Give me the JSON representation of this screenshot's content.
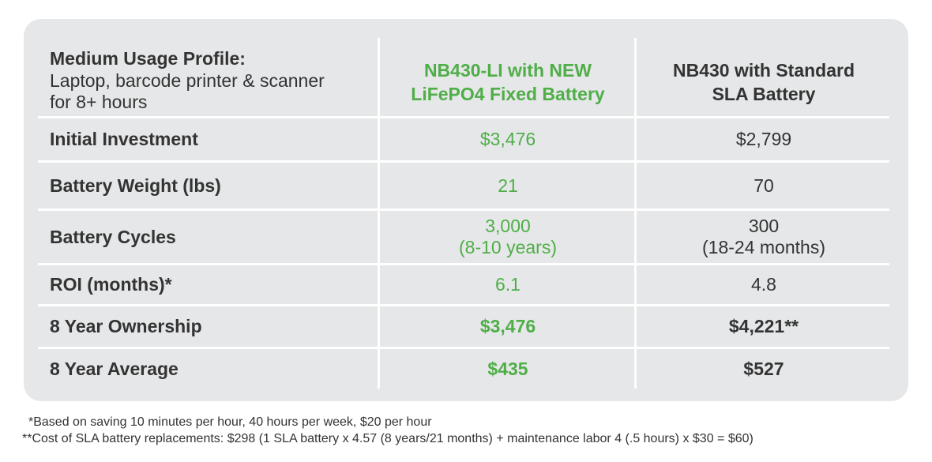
{
  "header": {
    "profile_title": "Medium Usage Profile:",
    "profile_line1": "Laptop, barcode printer & scanner",
    "profile_line2": "for 8+ hours",
    "col1_line1": "NB430-LI with NEW",
    "col1_line2": "LiFePO4 Fixed Battery",
    "col2_line1": "NB430 with Standard",
    "col2_line2": "SLA Battery"
  },
  "rows": [
    {
      "label": "Initial Investment",
      "col1": "$3,476",
      "col2": "$2,799"
    },
    {
      "label": "Battery Weight (lbs)",
      "col1": "21",
      "col2": "70"
    },
    {
      "label": "Battery Cycles",
      "col1": "3,000",
      "col1_sub": "(8-10 years)",
      "col2": "300",
      "col2_sub": "(18-24 months)"
    },
    {
      "label": "ROI (months)*",
      "col1": "6.1",
      "col2": "4.8"
    },
    {
      "label": "8 Year Ownership",
      "col1": "$3,476",
      "col2": "$4,221**"
    },
    {
      "label": "8 Year Average",
      "col1": "$435",
      "col2": "$527"
    }
  ],
  "footnotes": {
    "note1": "*Based on saving 10 minutes per hour, 40 hours per week, $20 per hour",
    "note2": "**Cost of SLA battery replacements: $298 (1 SLA battery x 4.57 (8 years/21 months) + maintenance labor 4 (.5 hours) x $30 = $60)"
  },
  "colors": {
    "card": "#e6e7e8",
    "green": "#4fae48",
    "text": "#333333"
  }
}
